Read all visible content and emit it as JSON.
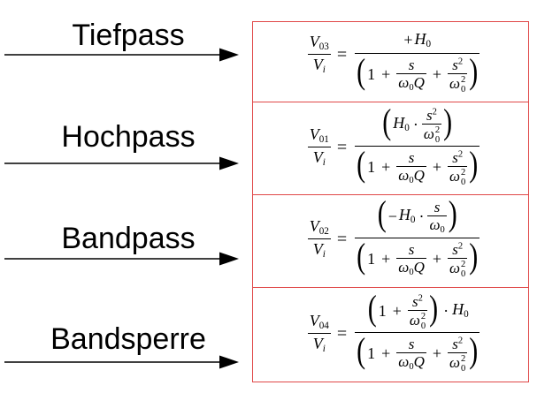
{
  "filters": [
    {
      "label": "Tiefpass",
      "lhs": {
        "num_var": "V",
        "num_sub": "03",
        "den_var": "V",
        "den_sub": "i"
      },
      "numerator": {
        "sign": "+",
        "var": "H",
        "sub": "0"
      }
    },
    {
      "label": "Hochpass",
      "lhs": {
        "num_var": "V",
        "num_sub": "01",
        "den_var": "V",
        "den_sub": "i"
      },
      "numerator": {
        "lparen": "(",
        "var": "H",
        "sub": "0",
        "op": "·",
        "frac_num": "s",
        "frac_num_sup": "2",
        "frac_den": "ω",
        "frac_den_sub": "0",
        "frac_den_sup": "2",
        "rparen": ")"
      }
    },
    {
      "label": "Bandpass",
      "lhs": {
        "num_var": "V",
        "num_sub": "02",
        "den_var": "V",
        "den_sub": "i"
      },
      "numerator": {
        "lparen": "(",
        "sign": "−",
        "var": "H",
        "sub": "0",
        "op": "·",
        "frac_num": "s",
        "frac_den": "ω",
        "frac_den_sub": "0",
        "rparen": ")"
      }
    },
    {
      "label": "Bandsperre",
      "lhs": {
        "num_var": "V",
        "num_sub": "04",
        "den_var": "V",
        "den_sub": "i"
      },
      "numerator": {
        "lparen": "(",
        "one": "1",
        "plus": "+",
        "frac_num": "s",
        "frac_num_sup": "2",
        "frac_den": "ω",
        "frac_den_sub": "0",
        "frac_den_sup": "2",
        "rparen": ")",
        "op": "·",
        "var": "H",
        "sub": "0"
      }
    }
  ],
  "equals": "=",
  "denominator": {
    "lparen": "(",
    "one": "1",
    "plus": "+",
    "t1_num": "s",
    "t1_den_var": "ω",
    "t1_den_sub": "0",
    "t1_den_q": "Q",
    "t2_num": "s",
    "t2_num_sup": "2",
    "t2_den_var": "ω",
    "t2_den_sub": "0",
    "t2_den_sup": "2",
    "rparen": ")"
  },
  "colors": {
    "box_border": "#e04848",
    "arrow": "#000000"
  }
}
